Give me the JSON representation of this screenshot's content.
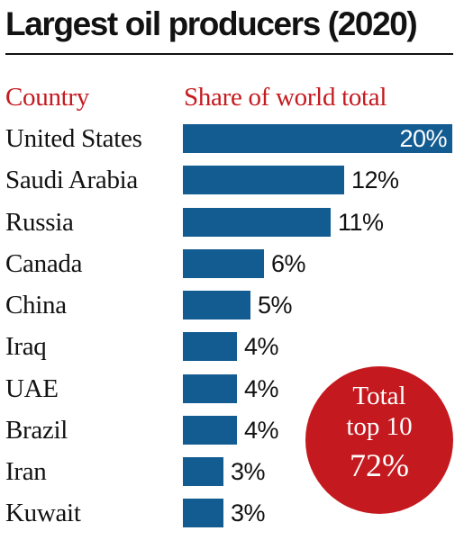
{
  "page": {
    "title": "Largest oil producers (2020)",
    "header_country": "Country",
    "header_share": "Share of world total"
  },
  "chart_data": {
    "type": "bar",
    "orientation": "horizontal",
    "title": "Largest oil producers (2020)",
    "xlabel": "Share of world total",
    "ylabel": "Country",
    "categories": [
      "United States",
      "Saudi Arabia",
      "Russia",
      "Canada",
      "China",
      "Iraq",
      "UAE",
      "Brazil",
      "Iran",
      "Kuwait"
    ],
    "values": [
      20,
      12,
      11,
      6,
      5,
      4,
      4,
      4,
      3,
      3
    ],
    "value_labels": [
      "20%",
      "12%",
      "11%",
      "6%",
      "5%",
      "4%",
      "4%",
      "4%",
      "3%",
      "3%"
    ],
    "unit": "%",
    "xlim": [
      0,
      20
    ],
    "grid": false,
    "legend": "none",
    "annotation": {
      "line1": "Total",
      "line2": "top 10",
      "value": "72%"
    }
  },
  "colors": {
    "bar": "#135c92",
    "header_text": "#c41a1f",
    "badge": "#c41a1f",
    "text": "#121212"
  }
}
